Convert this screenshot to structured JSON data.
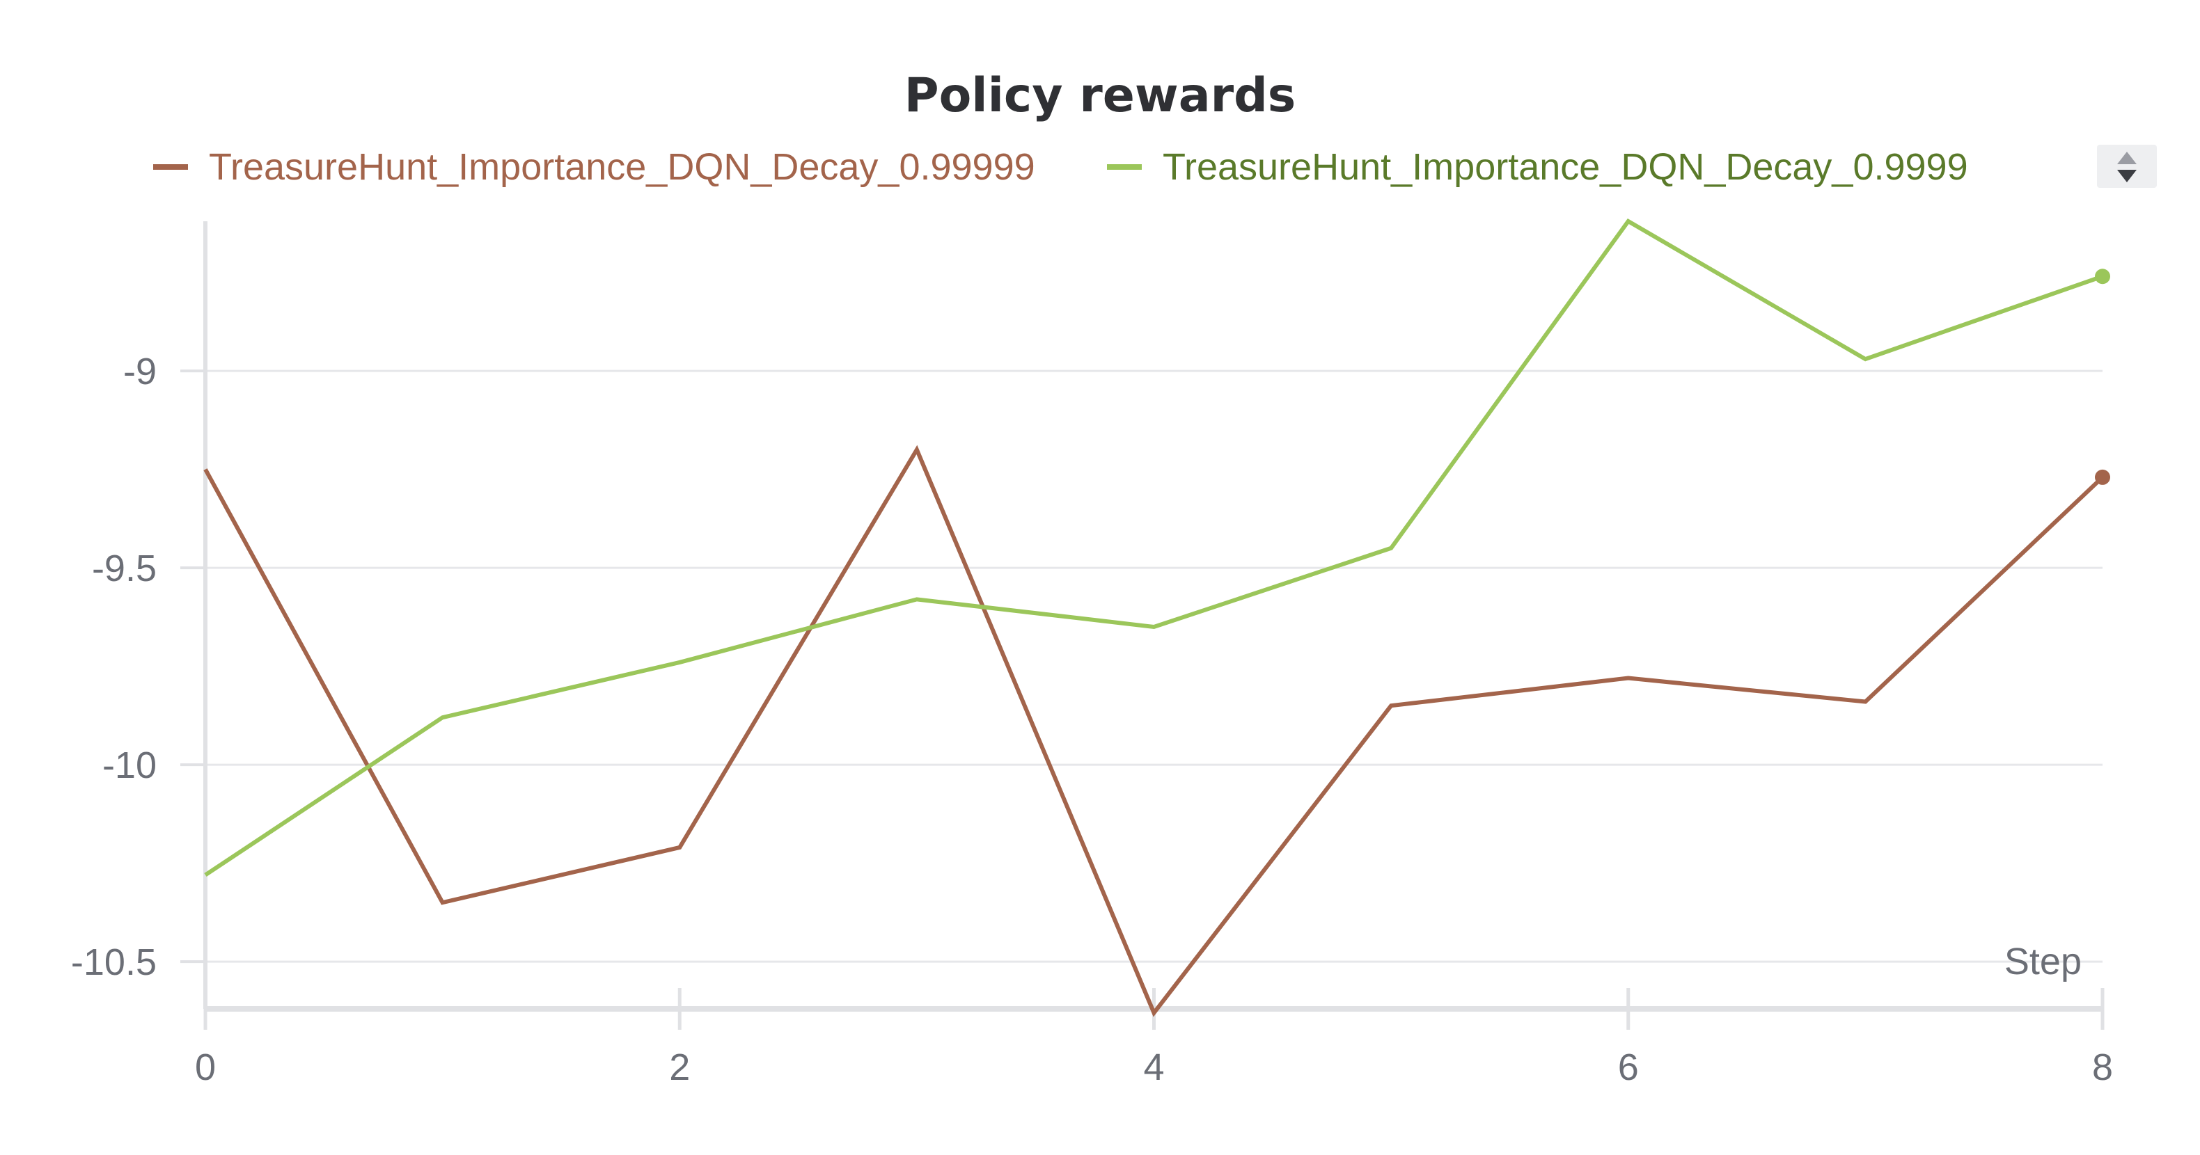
{
  "chart_data": {
    "type": "line",
    "title": "Policy rewards",
    "xlabel": "Step",
    "ylabel": "",
    "x": [
      0,
      1,
      2,
      3,
      4,
      5,
      6,
      7,
      8
    ],
    "xlim": [
      0,
      8
    ],
    "ylim": [
      -10.62,
      -8.62
    ],
    "x_ticks": [
      0,
      2,
      4,
      6,
      8
    ],
    "y_ticks": [
      -10.5,
      -10,
      -9.5,
      -9
    ],
    "x_tick_labels": [
      "0",
      "2",
      "4",
      "6",
      "8"
    ],
    "y_tick_labels": [
      "-10.5",
      "-10",
      "-9.5",
      "-9"
    ],
    "grid": true,
    "legend_position": "top",
    "series": [
      {
        "name": "TreasureHunt_Importance_DQN_Decay_0.99999",
        "color": "#a3644b",
        "values": [
          -9.25,
          -10.35,
          -10.21,
          -9.2,
          -10.63,
          -9.85,
          -9.78,
          -9.84,
          -9.27
        ]
      },
      {
        "name": "TreasureHunt_Importance_DQN_Decay_0.9999",
        "color": "#9bc65a",
        "values": [
          -10.28,
          -9.88,
          -9.74,
          -9.58,
          -9.65,
          -9.45,
          -8.62,
          -8.97,
          -8.76
        ]
      }
    ],
    "legend_text_colors": [
      "#a3644b",
      "#5a7a2a"
    ]
  }
}
